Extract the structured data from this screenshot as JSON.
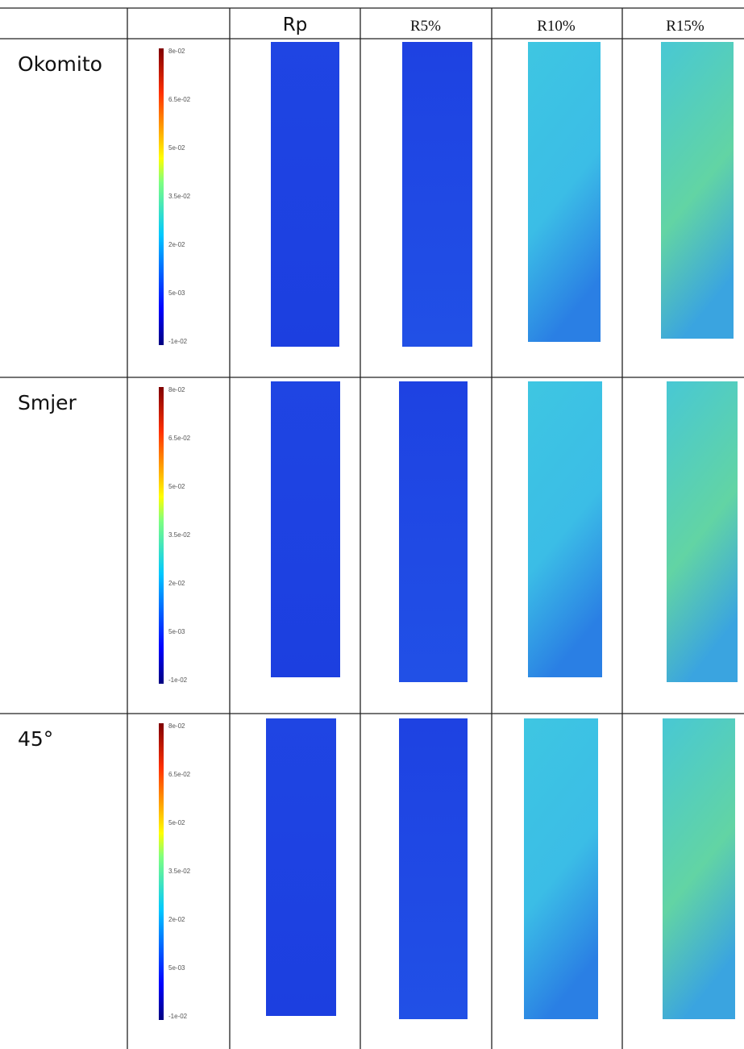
{
  "header": {
    "columns": [
      "Rp",
      "R5%",
      "R10%",
      "R15%"
    ]
  },
  "rows": [
    {
      "label": "Okomito"
    },
    {
      "label": "Smjer"
    },
    {
      "label": "45°"
    }
  ],
  "colorbar": {
    "labels": [
      "8e-02",
      "6.5e-02",
      "5e-02",
      "3.5e-02",
      "2e-02",
      "5e-03",
      "-1e-02"
    ]
  }
}
